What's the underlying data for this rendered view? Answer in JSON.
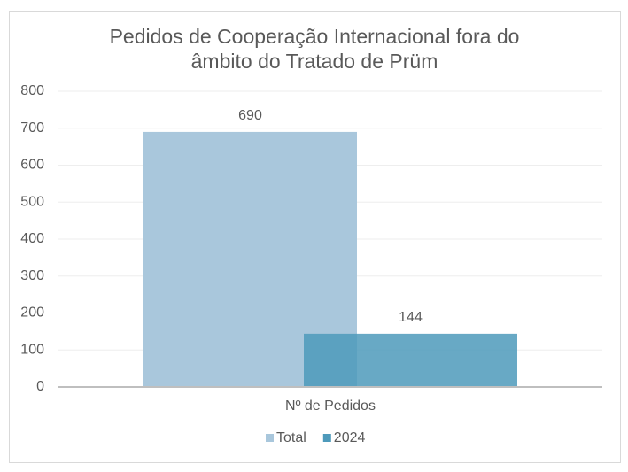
{
  "chart_data": {
    "type": "bar",
    "title": "Pedidos de Cooperação Internacional fora do âmbito do Tratado de Prüm",
    "categories": [
      "Nº de Pedidos"
    ],
    "series": [
      {
        "name": "Total",
        "color": "#a9c7dc",
        "values": [
          690
        ]
      },
      {
        "name": "2024",
        "color": "#4e9abb",
        "values": [
          144
        ]
      }
    ],
    "ylim": [
      0,
      800
    ],
    "yticks": [
      0,
      100,
      200,
      300,
      400,
      500,
      600,
      700,
      800
    ],
    "grid": true,
    "legend": "bottom"
  }
}
